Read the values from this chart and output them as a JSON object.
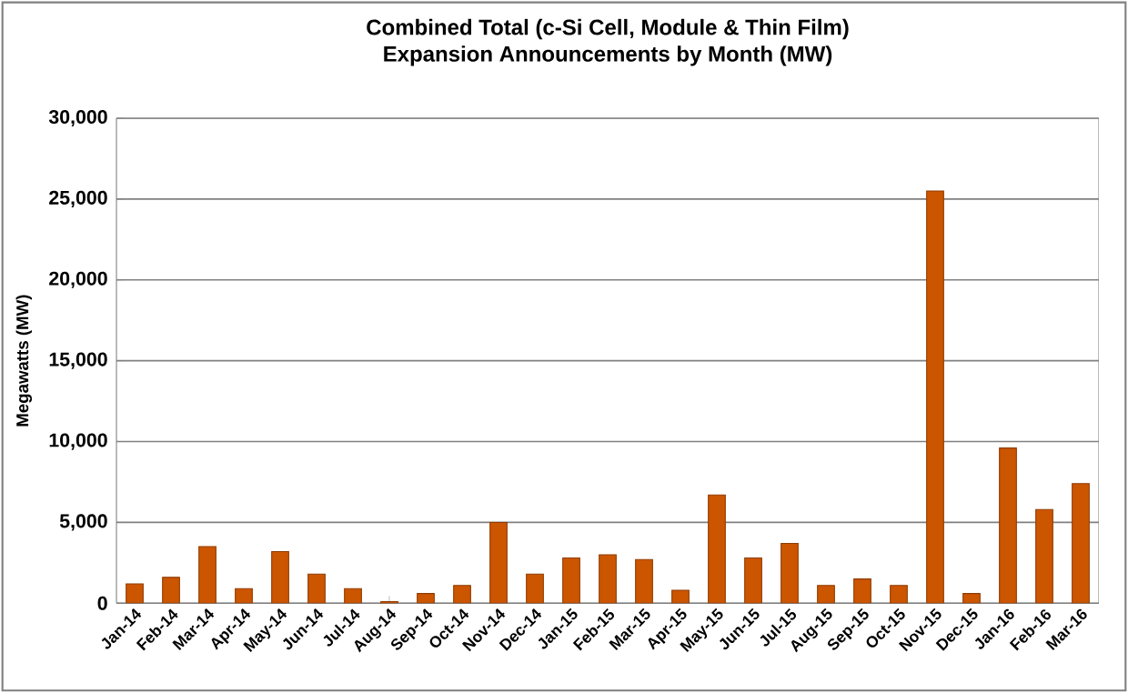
{
  "chart_data": {
    "type": "bar",
    "title": "Combined Total (c-Si Cell, Module & Thin Film)\nExpansion Announcements by Month (MW)",
    "ylabel": "Megawatts (MW)",
    "categories": [
      "Jan-14",
      "Feb-14",
      "Mar-14",
      "Apr-14",
      "May-14",
      "Jun-14",
      "Jul-14",
      "Aug-14",
      "Sep-14",
      "Oct-14",
      "Nov-14",
      "Dec-14",
      "Jan-15",
      "Feb-15",
      "Mar-15",
      "Apr-15",
      "May-15",
      "Jun-15",
      "Jul-15",
      "Aug-15",
      "Sep-15",
      "Oct-15",
      "Nov-15",
      "Dec-15",
      "Jan-16",
      "Feb-16",
      "Mar-16"
    ],
    "values": [
      1200,
      1600,
      3500,
      900,
      3200,
      1800,
      900,
      100,
      600,
      1100,
      5000,
      1800,
      2800,
      3000,
      2700,
      800,
      6700,
      2800,
      3700,
      1100,
      1500,
      1100,
      25500,
      600,
      9600,
      5800,
      7400
    ],
    "color": "#cc5500",
    "ylim": [
      0,
      30000
    ],
    "yticks": [
      {
        "value": 0,
        "label": "0"
      },
      {
        "value": 5000,
        "label": "5,000"
      },
      {
        "value": 10000,
        "label": "10,000"
      },
      {
        "value": 15000,
        "label": "15,000"
      },
      {
        "value": 20000,
        "label": "20,000"
      },
      {
        "value": 25000,
        "label": "25,000"
      },
      {
        "value": 30000,
        "label": "30,000"
      }
    ],
    "grid": "y"
  }
}
